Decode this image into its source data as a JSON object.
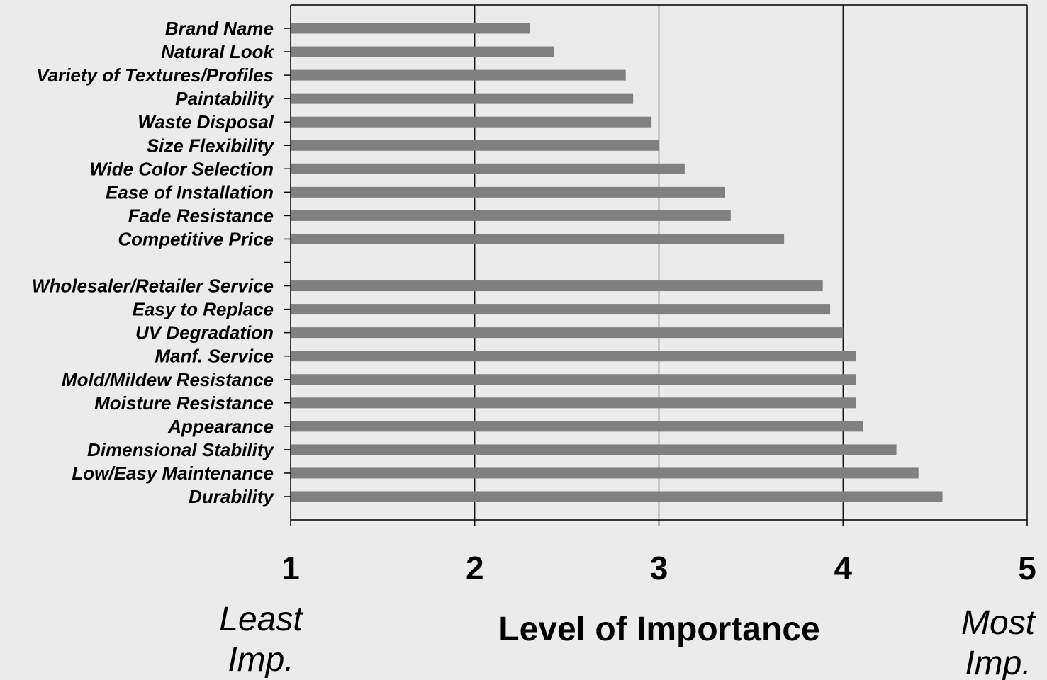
{
  "chart_data": {
    "type": "bar",
    "orientation": "horizontal",
    "categories": [
      "Brand Name",
      "Natural Look",
      "Variety of Textures/Profiles",
      "Paintability",
      "Waste Disposal",
      "Size Flexibility",
      "Wide Color Selection",
      "Ease of Installation",
      "Fade Resistance",
      "Competitive Price",
      "",
      "Wholesaler/Retailer Service",
      "Easy to Replace",
      "UV Degradation",
      "Manf. Service",
      "Mold/Mildew Resistance",
      "Moisture Resistance",
      "Appearance",
      "Dimensional Stability",
      "Low/Easy Maintenance",
      "Durability"
    ],
    "values": [
      2.3,
      2.43,
      2.82,
      2.86,
      2.96,
      3.0,
      3.14,
      3.36,
      3.39,
      3.68,
      null,
      3.89,
      3.93,
      4.0,
      4.07,
      4.07,
      4.07,
      4.11,
      4.29,
      4.41,
      4.54
    ],
    "xlim": [
      1,
      5
    ],
    "xticks": [
      "1",
      "2",
      "3",
      "4",
      "5"
    ],
    "xlabel": "Level of Importance",
    "x_end_labels": {
      "left": [
        "Least",
        "Imp."
      ],
      "right": [
        "Most",
        "Imp."
      ]
    },
    "grid": "vertical",
    "bar_color": "#808080"
  }
}
